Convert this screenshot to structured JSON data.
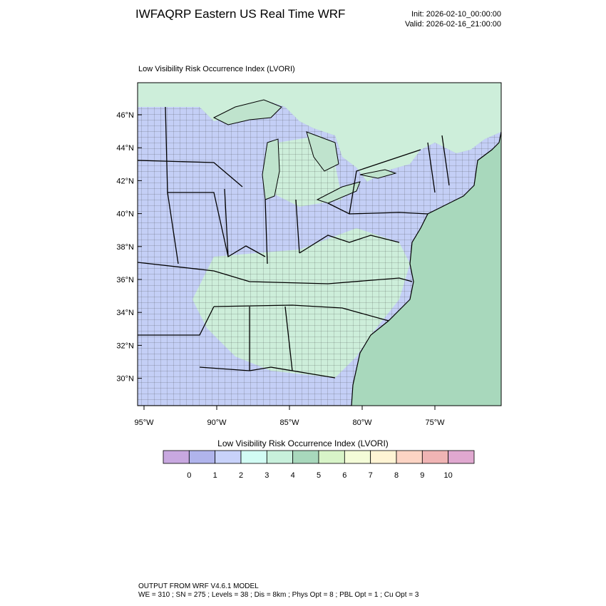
{
  "header": {
    "title": "IWFAQRP Eastern US Real Time WRF",
    "init_label": "Init: 2026-02-10_00:00:00",
    "valid_label": "Valid: 2026-02-16_21:00:00"
  },
  "map": {
    "subtitle": "Low Visibility Risk Occurrence Index   (LVORI)",
    "lat_labels": [
      "46°N",
      "44°N",
      "42°N",
      "40°N",
      "38°N",
      "36°N",
      "34°N",
      "32°N",
      "30°N"
    ],
    "lon_labels": [
      "95°W",
      "90°W",
      "85°W",
      "80°W",
      "75°W"
    ],
    "colors": {
      "ocean": "#a8d8bc",
      "land_low": "#c4cff6",
      "land_mid": "#cdeeda",
      "lake": "#bfe3cd",
      "border": "#000000"
    }
  },
  "colorbar": {
    "title": "Low Visibility Risk Occurrence Index  (LVORI)",
    "labels": [
      "0",
      "1",
      "2",
      "3",
      "4",
      "5",
      "6",
      "7",
      "8",
      "9",
      "10"
    ],
    "colors": [
      "#c8a8e0",
      "#b0b4ec",
      "#c8d2fa",
      "#d2fcf4",
      "#c8f0dc",
      "#a8d8bc",
      "#d8f4c8",
      "#f4fcd8",
      "#fff4d4",
      "#fcd4c4",
      "#f0b4b4",
      "#e0a8d0"
    ]
  },
  "footer": {
    "line1": "OUTPUT FROM WRF V4.6.1 MODEL",
    "line2": "WE = 310 ; SN = 275 ; Levels = 38 ; Dis = 8km ; Phys Opt = 8 ; PBL Opt = 1 ; Cu Opt = 3"
  }
}
